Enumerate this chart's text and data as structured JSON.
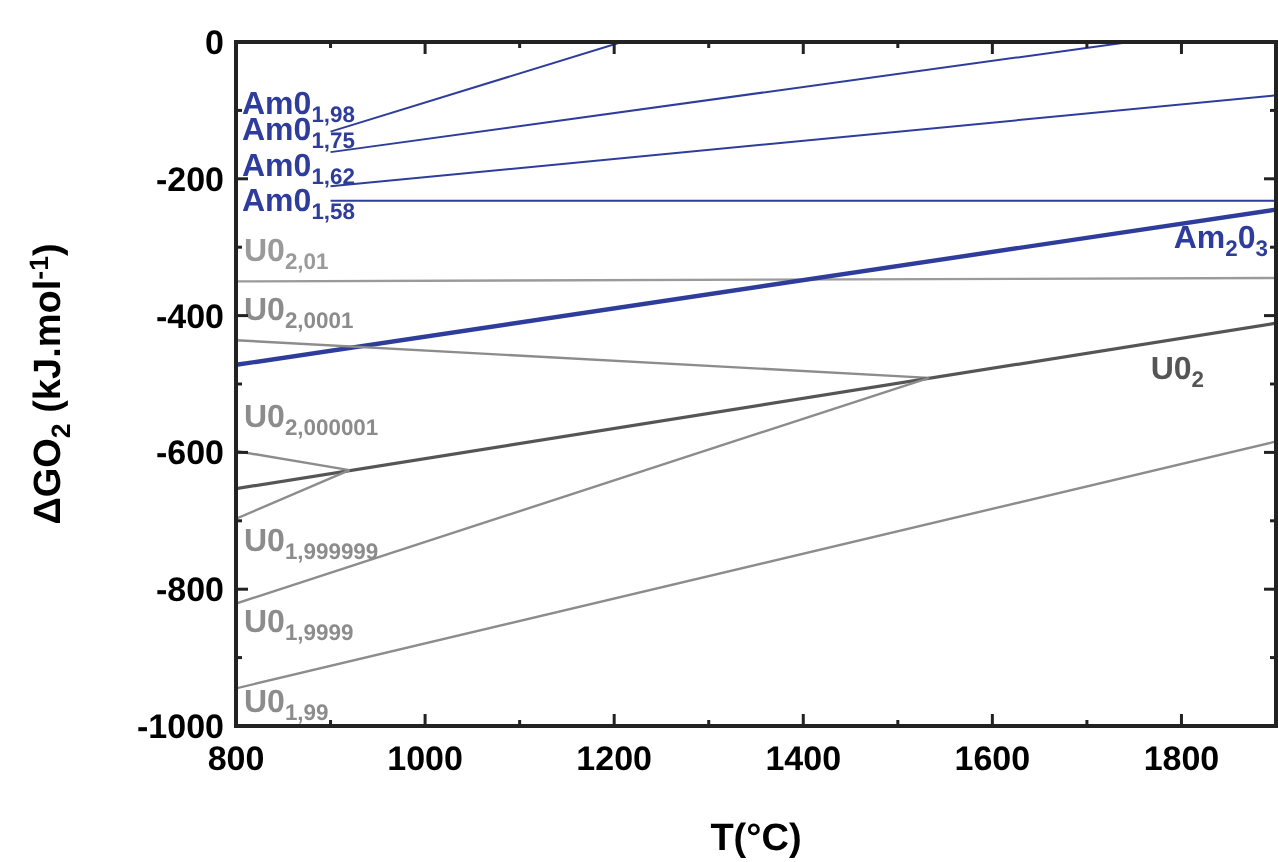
{
  "chart_data": {
    "type": "line",
    "xlabel": "T(°C)",
    "ylabel": "ΔGO$_{2}$ (kJ.mol$^{-1}$)",
    "xlim": [
      800,
      1900
    ],
    "ylim": [
      -1000,
      0
    ],
    "xticks": [
      800,
      {
        "value": 900,
        "label": null
      },
      1000,
      {
        "value": 1100,
        "label": null
      },
      1200,
      {
        "value": 1300,
        "label": null
      },
      1400,
      {
        "value": 1500,
        "label": null
      },
      1600,
      {
        "value": 1700,
        "label": null
      },
      1800,
      {
        "value": 1900,
        "label": null
      }
    ],
    "yticks": [
      -1000,
      {
        "value": -900,
        "label": null
      },
      -800,
      {
        "value": -700,
        "label": null
      },
      -600,
      {
        "value": -500,
        "label": null
      },
      -400,
      {
        "value": -300,
        "label": null
      },
      -200,
      {
        "value": -100,
        "label": null
      },
      0
    ],
    "grid": false,
    "legend": false,
    "marker": "none",
    "line_style": "solid",
    "series": [
      {
        "name": "Am0$_{1,98}$",
        "color": "#2e3d9c",
        "x": [
          900,
          1208
        ],
        "values": [
          -131,
          0
        ]
      },
      {
        "name": "Am0$_{1,75}$",
        "color": "#2e3d9c",
        "x": [
          900,
          1745
        ],
        "values": [
          -161,
          0
        ]
      },
      {
        "name": "Am0$_{1,62}$",
        "color": "#2e3d9c",
        "x": [
          900,
          1900
        ],
        "values": [
          -211,
          -78
        ]
      },
      {
        "name": "Am0$_{1,58}$",
        "color": "#2e3d9c",
        "x": [
          900,
          1900
        ],
        "values": [
          -232,
          -232
        ]
      },
      {
        "name": "U0$_{2,01}$",
        "color": "#9a9a9a",
        "x": [
          800,
          1900
        ],
        "values": [
          -350,
          -345
        ]
      },
      {
        "name": "Am$_{2}$0$_{3}$",
        "color": "#2e3d9c",
        "x": [
          800,
          1900
        ],
        "values": [
          -472,
          -245
        ]
      },
      {
        "name": "U0$_{2,0001}$",
        "color": "#8c8c8c",
        "x": [
          800,
          1533
        ],
        "values": [
          -436,
          -491
        ]
      },
      {
        "name": "U0$_{2}$",
        "color": "#555555",
        "x": [
          800,
          1900
        ],
        "values": [
          -653,
          -411
        ]
      },
      {
        "name": "U0$_{2,000001}$",
        "color": "#8c8c8c",
        "x": [
          800,
          920
        ],
        "values": [
          -598,
          -626
        ]
      },
      {
        "name": "U0$_{1,999999}$",
        "color": "#8c8c8c",
        "x": [
          800,
          920
        ],
        "values": [
          -697,
          -626
        ]
      },
      {
        "name": "U0$_{1,9999}$",
        "color": "#8c8c8c",
        "x": [
          800,
          1533
        ],
        "values": [
          -821,
          -491
        ]
      },
      {
        "name": "U0$_{1,99}$",
        "color": "#8c8c8c",
        "x": [
          800,
          1900
        ],
        "values": [
          -945,
          -584
        ]
      }
    ]
  }
}
